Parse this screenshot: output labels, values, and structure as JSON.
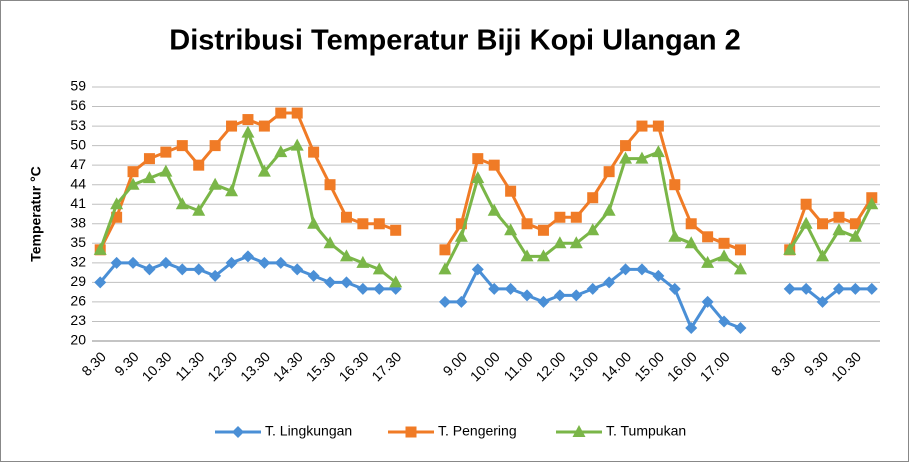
{
  "chart_data": {
    "type": "line",
    "title": "Distribusi Temperatur Biji Kopi Ulangan 2",
    "y_label": "Temperatur °C",
    "categories": [
      "8.30",
      null,
      "9.30",
      null,
      "10.30",
      null,
      "11.30",
      null,
      "12.30",
      null,
      "13.30",
      null,
      "14.30",
      null,
      "15.30",
      null,
      "16.30",
      null,
      "17.30",
      null,
      null,
      null,
      "9.00",
      null,
      "10.00",
      null,
      "11.00",
      null,
      "12.00",
      null,
      "13.00",
      null,
      "14.00",
      null,
      "15.00",
      null,
      "16.00",
      null,
      "17.00",
      null,
      null,
      null,
      "8.30",
      null,
      "9.30",
      null,
      "10.30",
      null
    ],
    "series": [
      {
        "name": "T. Lingkungan",
        "color": "#4a8fd6",
        "marker": "diamond",
        "values": [
          29,
          32,
          32,
          31,
          32,
          31,
          31,
          30,
          32,
          33,
          32,
          32,
          31,
          30,
          29,
          29,
          28,
          28,
          28,
          null,
          null,
          26,
          26,
          31,
          28,
          28,
          27,
          26,
          27,
          27,
          28,
          29,
          31,
          31,
          30,
          28,
          22,
          26,
          23,
          22,
          null,
          null,
          28,
          28,
          26,
          28,
          28,
          28
        ]
      },
      {
        "name": "T. Pengering",
        "color": "#f07b26",
        "marker": "square",
        "values": [
          34,
          39,
          46,
          48,
          49,
          50,
          47,
          50,
          53,
          54,
          53,
          55,
          55,
          49,
          44,
          39,
          38,
          38,
          37,
          null,
          null,
          34,
          38,
          48,
          47,
          43,
          38,
          37,
          39,
          39,
          42,
          46,
          50,
          53,
          53,
          44,
          38,
          36,
          35,
          34,
          null,
          null,
          34,
          41,
          38,
          39,
          38,
          42
        ]
      },
      {
        "name": "T. Tumpukan",
        "color": "#7ab648",
        "marker": "triangle",
        "values": [
          34,
          41,
          44,
          45,
          46,
          41,
          40,
          44,
          43,
          52,
          46,
          49,
          50,
          38,
          35,
          33,
          32,
          31,
          29,
          null,
          null,
          31,
          36,
          45,
          40,
          37,
          33,
          33,
          35,
          35,
          37,
          40,
          48,
          48,
          49,
          36,
          35,
          32,
          33,
          31,
          null,
          null,
          34,
          38,
          33,
          37,
          36,
          41
        ]
      }
    ],
    "ylim": [
      20,
      59
    ],
    "yticks": [
      20,
      23,
      26,
      29,
      32,
      35,
      38,
      41,
      44,
      47,
      50,
      53,
      56,
      59
    ],
    "grid": true,
    "legend": "bottom"
  }
}
